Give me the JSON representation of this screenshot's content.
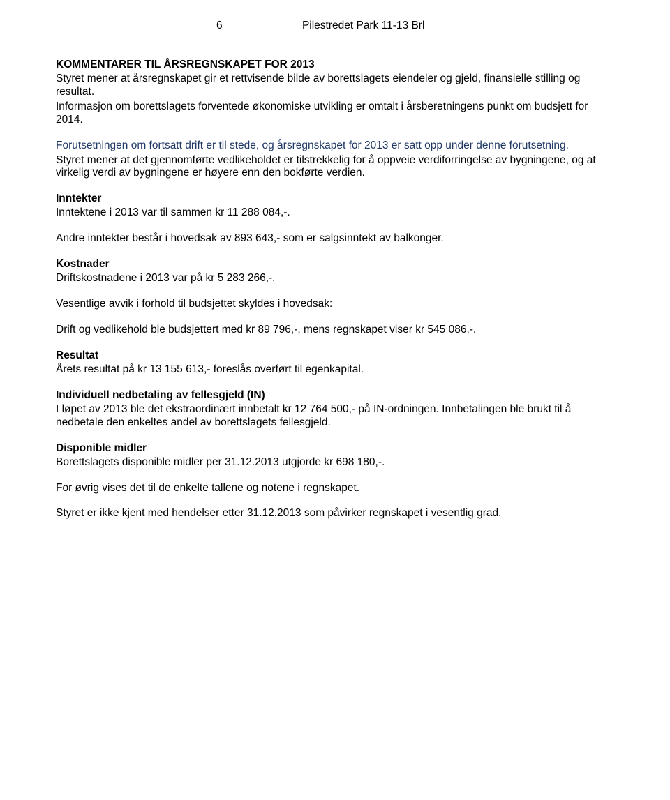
{
  "header": {
    "page_number": "6",
    "doc_title": "Pilestredet Park 11-13 Brl"
  },
  "sections": {
    "main_title": "KOMMENTARER TIL ÅRSREGNSKAPET FOR 2013",
    "intro_p1": "Styret mener at årsregnskapet gir et rettvisende bilde av borettslagets eiendeler og gjeld, finansielle stilling og resultat.",
    "intro_p2": "Informasjon om borettslagets forventede økonomiske utvikling er omtalt i årsberetningens punkt om budsjett for 2014.",
    "forutsetning_p1": "Forutsetningen om fortsatt drift er til stede, og årsregnskapet for 2013 er satt opp under denne forutsetning.",
    "forutsetning_p2": "Styret mener at det gjennomførte vedlikeholdet er tilstrekkelig for å oppveie verdiforringelse av bygningene, og at virkelig verdi av bygningene er høyere enn den bokførte verdien.",
    "inntekter_title": "Inntekter",
    "inntekter_line": "Inntektene i 2013 var til sammen kr 11 288 084,-.",
    "andre_inntekter": "Andre inntekter består i hovedsak av 893 643,- som er salgsinntekt av balkonger.",
    "kostnader_title": "Kostnader",
    "kostnader_line": "Driftskostnadene i 2013 var på kr 5 283 266,-.",
    "avvik_intro": "Vesentlige avvik i forhold til budsjettet skyldes i hovedsak:",
    "avvik_detail": "Drift og vedlikehold ble budsjettert med kr 89 796,-, mens regnskapet viser kr 545 086,-.",
    "resultat_title": "Resultat",
    "resultat_line": "Årets resultat på kr 13 155 613,- foreslås overført til egenkapital.",
    "in_title": "Individuell nedbetaling av fellesgjeld (IN)",
    "in_p1": "I løpet av 2013 ble det ekstraordinært innbetalt kr 12 764 500,- på IN-ordningen. Innbetalingen ble brukt til å nedbetale den enkeltes andel av borettslagets fellesgjeld.",
    "disp_title": "Disponible midler",
    "disp_line": "Borettslagets disponible midler per 31.12.2013 utgjorde kr 698 180,-.",
    "foravrig": "For øvrig vises det til de enkelte tallene og notene i regnskapet.",
    "closing": "Styret er ikke kjent med hendelser etter 31.12.2013 som påvirker regnskapet i vesentlig grad."
  }
}
